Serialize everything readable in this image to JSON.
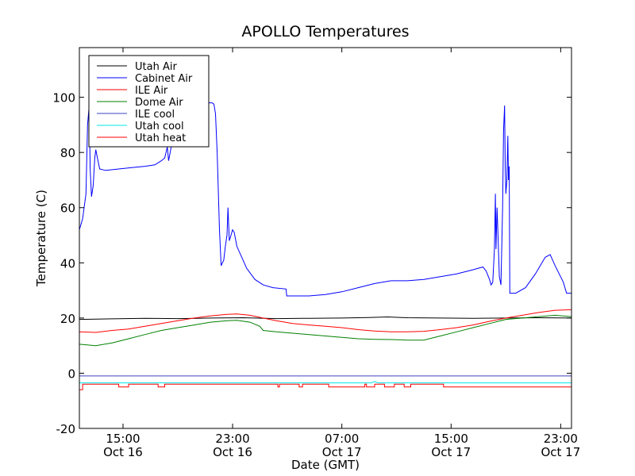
{
  "chart_data": {
    "type": "line",
    "title": "APOLLO Temperatures",
    "xlabel": "Date (GMT)",
    "ylabel": "Temperature (C)",
    "xlim": [
      9.0,
      24.0
    ],
    "ylim": [
      -20,
      118
    ],
    "legend_position": "top-left",
    "y_ticks": [
      {
        "value": 100,
        "label": "100"
      },
      {
        "value": 80,
        "label": "80"
      },
      {
        "value": 60,
        "label": "60"
      },
      {
        "value": 40,
        "label": "40"
      },
      {
        "value": 20,
        "label": "20"
      },
      {
        "value": 0,
        "label": "0"
      },
      {
        "value": -20,
        "label": "-20"
      }
    ],
    "x_ticks": [
      {
        "value": 10.33,
        "time": "15:00",
        "date": "Oct 16"
      },
      {
        "value": 13.67,
        "time": "23:00",
        "date": "Oct 16"
      },
      {
        "value": 17.0,
        "time": "07:00",
        "date": "Oct 17"
      },
      {
        "value": 20.33,
        "time": "15:00",
        "date": "Oct 17"
      },
      {
        "value": 23.67,
        "time": "23:00",
        "date": "Oct 17"
      }
    ],
    "series": [
      {
        "name": "Utah Air",
        "color": "#000000",
        "points": [
          [
            9.0,
            19.5
          ],
          [
            10.0,
            19.7
          ],
          [
            11.0,
            19.9
          ],
          [
            12.0,
            19.8
          ],
          [
            13.0,
            20.0
          ],
          [
            14.0,
            20.1
          ],
          [
            15.0,
            19.8
          ],
          [
            16.0,
            19.9
          ],
          [
            17.0,
            20.0
          ],
          [
            17.8,
            20.2
          ],
          [
            18.4,
            20.4
          ],
          [
            19.0,
            20.1
          ],
          [
            20.0,
            20.0
          ],
          [
            21.0,
            19.9
          ],
          [
            22.0,
            20.0
          ],
          [
            23.0,
            20.1
          ],
          [
            24.0,
            20.0
          ]
        ]
      },
      {
        "name": "Cabinet Air",
        "color": "#0000ff",
        "points": [
          [
            9.0,
            52
          ],
          [
            9.1,
            56
          ],
          [
            9.2,
            65
          ],
          [
            9.25,
            90
          ],
          [
            9.3,
            97
          ],
          [
            9.33,
            74
          ],
          [
            9.37,
            64
          ],
          [
            9.42,
            68
          ],
          [
            9.47,
            78
          ],
          [
            9.5,
            81
          ],
          [
            9.55,
            78
          ],
          [
            9.62,
            74
          ],
          [
            9.8,
            73.5
          ],
          [
            10.2,
            74
          ],
          [
            10.6,
            74.5
          ],
          [
            11.0,
            75
          ],
          [
            11.3,
            75.5
          ],
          [
            11.5,
            77
          ],
          [
            11.6,
            78
          ],
          [
            11.68,
            82
          ],
          [
            11.72,
            77
          ],
          [
            11.8,
            82
          ],
          [
            11.9,
            92
          ],
          [
            12.0,
            97
          ],
          [
            12.2,
            98
          ],
          [
            12.5,
            98
          ],
          [
            12.8,
            98
          ],
          [
            13.05,
            98
          ],
          [
            13.1,
            97.5
          ],
          [
            13.15,
            94
          ],
          [
            13.2,
            80
          ],
          [
            13.27,
            52
          ],
          [
            13.32,
            39
          ],
          [
            13.4,
            41
          ],
          [
            13.45,
            46
          ],
          [
            13.5,
            50
          ],
          [
            13.53,
            60
          ],
          [
            13.57,
            48
          ],
          [
            13.62,
            50
          ],
          [
            13.67,
            52
          ],
          [
            13.72,
            51
          ],
          [
            13.8,
            46
          ],
          [
            13.95,
            42
          ],
          [
            14.1,
            38
          ],
          [
            14.35,
            34
          ],
          [
            14.6,
            32
          ],
          [
            14.9,
            31
          ],
          [
            15.3,
            30.5
          ],
          [
            15.32,
            28
          ],
          [
            15.6,
            28
          ],
          [
            16.0,
            28
          ],
          [
            16.5,
            28.5
          ],
          [
            17.0,
            29.5
          ],
          [
            17.5,
            31
          ],
          [
            18.0,
            32.5
          ],
          [
            18.5,
            33.5
          ],
          [
            19.0,
            33.5
          ],
          [
            19.5,
            34
          ],
          [
            20.0,
            35
          ],
          [
            20.5,
            36
          ],
          [
            21.0,
            37.5
          ],
          [
            21.3,
            38.5
          ],
          [
            21.4,
            37
          ],
          [
            21.5,
            34
          ],
          [
            21.55,
            32
          ],
          [
            21.6,
            33
          ],
          [
            21.65,
            45
          ],
          [
            21.68,
            65
          ],
          [
            21.7,
            45
          ],
          [
            21.73,
            60
          ],
          [
            21.76,
            50
          ],
          [
            21.8,
            35
          ],
          [
            21.85,
            32
          ],
          [
            21.9,
            60
          ],
          [
            21.93,
            88
          ],
          [
            21.96,
            97
          ],
          [
            21.98,
            75
          ],
          [
            22.0,
            65
          ],
          [
            22.03,
            70
          ],
          [
            22.06,
            86
          ],
          [
            22.08,
            70
          ],
          [
            22.1,
            75
          ],
          [
            22.12,
            29
          ],
          [
            22.3,
            29
          ],
          [
            22.6,
            31
          ],
          [
            22.9,
            36
          ],
          [
            23.2,
            42
          ],
          [
            23.35,
            43
          ],
          [
            23.5,
            39
          ],
          [
            23.75,
            33
          ],
          [
            23.85,
            29
          ],
          [
            24.0,
            29
          ]
        ]
      },
      {
        "name": "ILE Air",
        "color": "#ff0000",
        "points": [
          [
            9.0,
            15
          ],
          [
            9.5,
            14.8
          ],
          [
            10.0,
            15.5
          ],
          [
            10.5,
            16
          ],
          [
            11.0,
            17
          ],
          [
            11.5,
            18
          ],
          [
            12.0,
            19
          ],
          [
            12.5,
            20
          ],
          [
            13.0,
            20.8
          ],
          [
            13.5,
            21.3
          ],
          [
            13.8,
            21.5
          ],
          [
            14.2,
            21
          ],
          [
            14.6,
            20
          ],
          [
            15.0,
            19
          ],
          [
            15.5,
            18
          ],
          [
            16.0,
            17.5
          ],
          [
            16.5,
            17
          ],
          [
            17.0,
            16.5
          ],
          [
            17.5,
            15.8
          ],
          [
            18.0,
            15.3
          ],
          [
            18.5,
            15
          ],
          [
            19.0,
            15
          ],
          [
            19.5,
            15.2
          ],
          [
            20.0,
            15.8
          ],
          [
            20.5,
            16.5
          ],
          [
            21.0,
            17.5
          ],
          [
            21.5,
            18.8
          ],
          [
            22.0,
            20
          ],
          [
            22.5,
            21
          ],
          [
            23.0,
            22
          ],
          [
            23.5,
            22.8
          ],
          [
            24.0,
            23
          ]
        ]
      },
      {
        "name": "Dome Air",
        "color": "#008000",
        "points": [
          [
            9.0,
            10.5
          ],
          [
            9.5,
            10
          ],
          [
            10.0,
            11
          ],
          [
            10.5,
            12.5
          ],
          [
            11.0,
            14
          ],
          [
            11.5,
            15.5
          ],
          [
            12.0,
            16.5
          ],
          [
            12.5,
            17.5
          ],
          [
            13.0,
            18.5
          ],
          [
            13.5,
            19
          ],
          [
            13.8,
            19.2
          ],
          [
            14.2,
            18.5
          ],
          [
            14.5,
            17
          ],
          [
            14.6,
            15.5
          ],
          [
            15.0,
            15
          ],
          [
            15.5,
            14.5
          ],
          [
            16.0,
            14
          ],
          [
            16.5,
            13.5
          ],
          [
            17.0,
            13
          ],
          [
            17.5,
            12.5
          ],
          [
            18.0,
            12.3
          ],
          [
            18.5,
            12.2
          ],
          [
            19.0,
            12
          ],
          [
            19.5,
            12
          ],
          [
            20.0,
            13.5
          ],
          [
            20.5,
            15
          ],
          [
            21.0,
            16.5
          ],
          [
            21.5,
            18
          ],
          [
            22.0,
            19.5
          ],
          [
            22.5,
            20
          ],
          [
            23.0,
            20.5
          ],
          [
            23.5,
            21
          ],
          [
            24.0,
            20.5
          ]
        ]
      },
      {
        "name": "ILE cool",
        "color": "#4040c0",
        "points": [
          [
            9.0,
            -1
          ],
          [
            24.0,
            -1
          ]
        ]
      },
      {
        "name": "Utah cool",
        "color": "#00e5e5",
        "points": [
          [
            9.0,
            -3.5
          ],
          [
            17.9,
            -3.5
          ],
          [
            18.0,
            -3
          ],
          [
            18.1,
            -3.5
          ],
          [
            24.0,
            -3.5
          ]
        ]
      },
      {
        "name": "Utah heat",
        "color": "#ff0000",
        "points": [
          [
            9.0,
            -6
          ],
          [
            9.1,
            -6
          ],
          [
            9.1,
            -4
          ],
          [
            10.2,
            -4
          ],
          [
            10.2,
            -5
          ],
          [
            10.5,
            -5
          ],
          [
            10.5,
            -4
          ],
          [
            11.4,
            -4
          ],
          [
            11.4,
            -5
          ],
          [
            11.6,
            -5
          ],
          [
            11.6,
            -4
          ],
          [
            15.05,
            -4
          ],
          [
            15.05,
            -5
          ],
          [
            15.1,
            -5
          ],
          [
            15.1,
            -4
          ],
          [
            15.7,
            -4
          ],
          [
            15.7,
            -5
          ],
          [
            15.8,
            -5
          ],
          [
            15.8,
            -4
          ],
          [
            16.6,
            -4
          ],
          [
            16.6,
            -5
          ],
          [
            17.7,
            -5
          ],
          [
            17.7,
            -4
          ],
          [
            17.75,
            -4
          ],
          [
            17.75,
            -5
          ],
          [
            18.0,
            -5
          ],
          [
            18.0,
            -4
          ],
          [
            18.3,
            -4
          ],
          [
            18.3,
            -5
          ],
          [
            18.6,
            -5
          ],
          [
            18.6,
            -4
          ],
          [
            18.9,
            -4
          ],
          [
            18.9,
            -5
          ],
          [
            19.1,
            -5
          ],
          [
            19.1,
            -4
          ],
          [
            20.1,
            -4
          ],
          [
            20.1,
            -5
          ],
          [
            24.0,
            -5
          ]
        ]
      }
    ]
  }
}
